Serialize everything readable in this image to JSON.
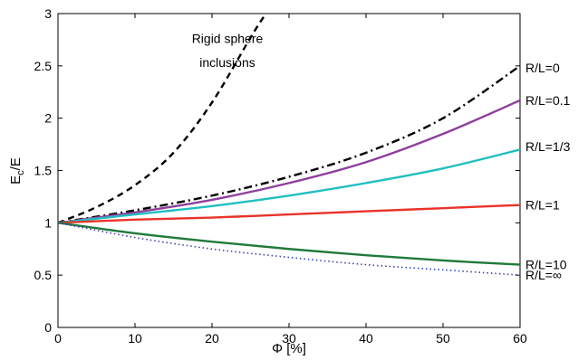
{
  "chart_data": {
    "type": "line",
    "xlabel": "Φ [%]",
    "ylabel_main": "E",
    "ylabel_sub": "c",
    "ylabel_rest": "/E",
    "xlim": [
      0,
      60
    ],
    "ylim": [
      0,
      3
    ],
    "xticks": [
      0,
      10,
      20,
      30,
      40,
      50,
      60
    ],
    "yticks": [
      0,
      0.5,
      1,
      1.5,
      2,
      2.5,
      3
    ],
    "ytick_labels": [
      "0",
      "0.5",
      "1",
      "1.5",
      "2",
      "2.5",
      "3"
    ],
    "grid": false,
    "annotations": [
      {
        "text": "Rigid sphere",
        "x": 22,
        "y": 2.72
      },
      {
        "text": "inclusions",
        "x": 22,
        "y": 2.49
      }
    ],
    "series": [
      {
        "name": "Rigid sphere inclusions",
        "color": "#000000",
        "style": "dashed",
        "x": [
          0,
          5,
          10,
          15,
          20,
          25,
          27
        ],
        "y": [
          1.0,
          1.15,
          1.36,
          1.67,
          2.15,
          2.77,
          3.0
        ]
      },
      {
        "name": "R/L=0",
        "color": "#000000",
        "style": "dashdot",
        "x": [
          0,
          10,
          20,
          30,
          40,
          50,
          60
        ],
        "y": [
          1.0,
          1.12,
          1.26,
          1.44,
          1.67,
          2.0,
          2.5
        ]
      },
      {
        "name": "R/L=0.1",
        "color": "#8e3f9c",
        "style": "solid",
        "x": [
          0,
          10,
          20,
          30,
          40,
          50,
          60
        ],
        "y": [
          1.0,
          1.1,
          1.22,
          1.38,
          1.58,
          1.85,
          2.17
        ]
      },
      {
        "name": "R/L=1/3",
        "color": "#1fbfbf",
        "style": "solid",
        "x": [
          0,
          10,
          20,
          30,
          40,
          50,
          60
        ],
        "y": [
          1.0,
          1.08,
          1.16,
          1.26,
          1.38,
          1.52,
          1.7
        ]
      },
      {
        "name": "R/L=1",
        "color": "#e8332a",
        "style": "solid",
        "x": [
          0,
          10,
          20,
          30,
          40,
          50,
          60
        ],
        "y": [
          1.0,
          1.03,
          1.05,
          1.08,
          1.11,
          1.14,
          1.17
        ]
      },
      {
        "name": "R/L=10",
        "color": "#1f7a3a",
        "style": "solid",
        "x": [
          0,
          10,
          20,
          30,
          40,
          50,
          60
        ],
        "y": [
          1.0,
          0.9,
          0.82,
          0.75,
          0.69,
          0.64,
          0.6
        ]
      },
      {
        "name": "R/L=∞",
        "color": "#3b3fb0",
        "style": "dotted",
        "x": [
          0,
          10,
          20,
          30,
          40,
          50,
          60
        ],
        "y": [
          1.0,
          0.86,
          0.75,
          0.67,
          0.6,
          0.55,
          0.5
        ]
      }
    ],
    "series_labels": [
      {
        "text": "R/L=0",
        "y": 2.48
      },
      {
        "text": "R/L=0.1",
        "y": 2.17
      },
      {
        "text": "R/L=1/3",
        "y": 1.73
      },
      {
        "text": "R/L=1",
        "y": 1.17
      },
      {
        "text": "R/L=10",
        "y": 0.6
      },
      {
        "text": "R/L=∞",
        "y": 0.5
      }
    ]
  }
}
